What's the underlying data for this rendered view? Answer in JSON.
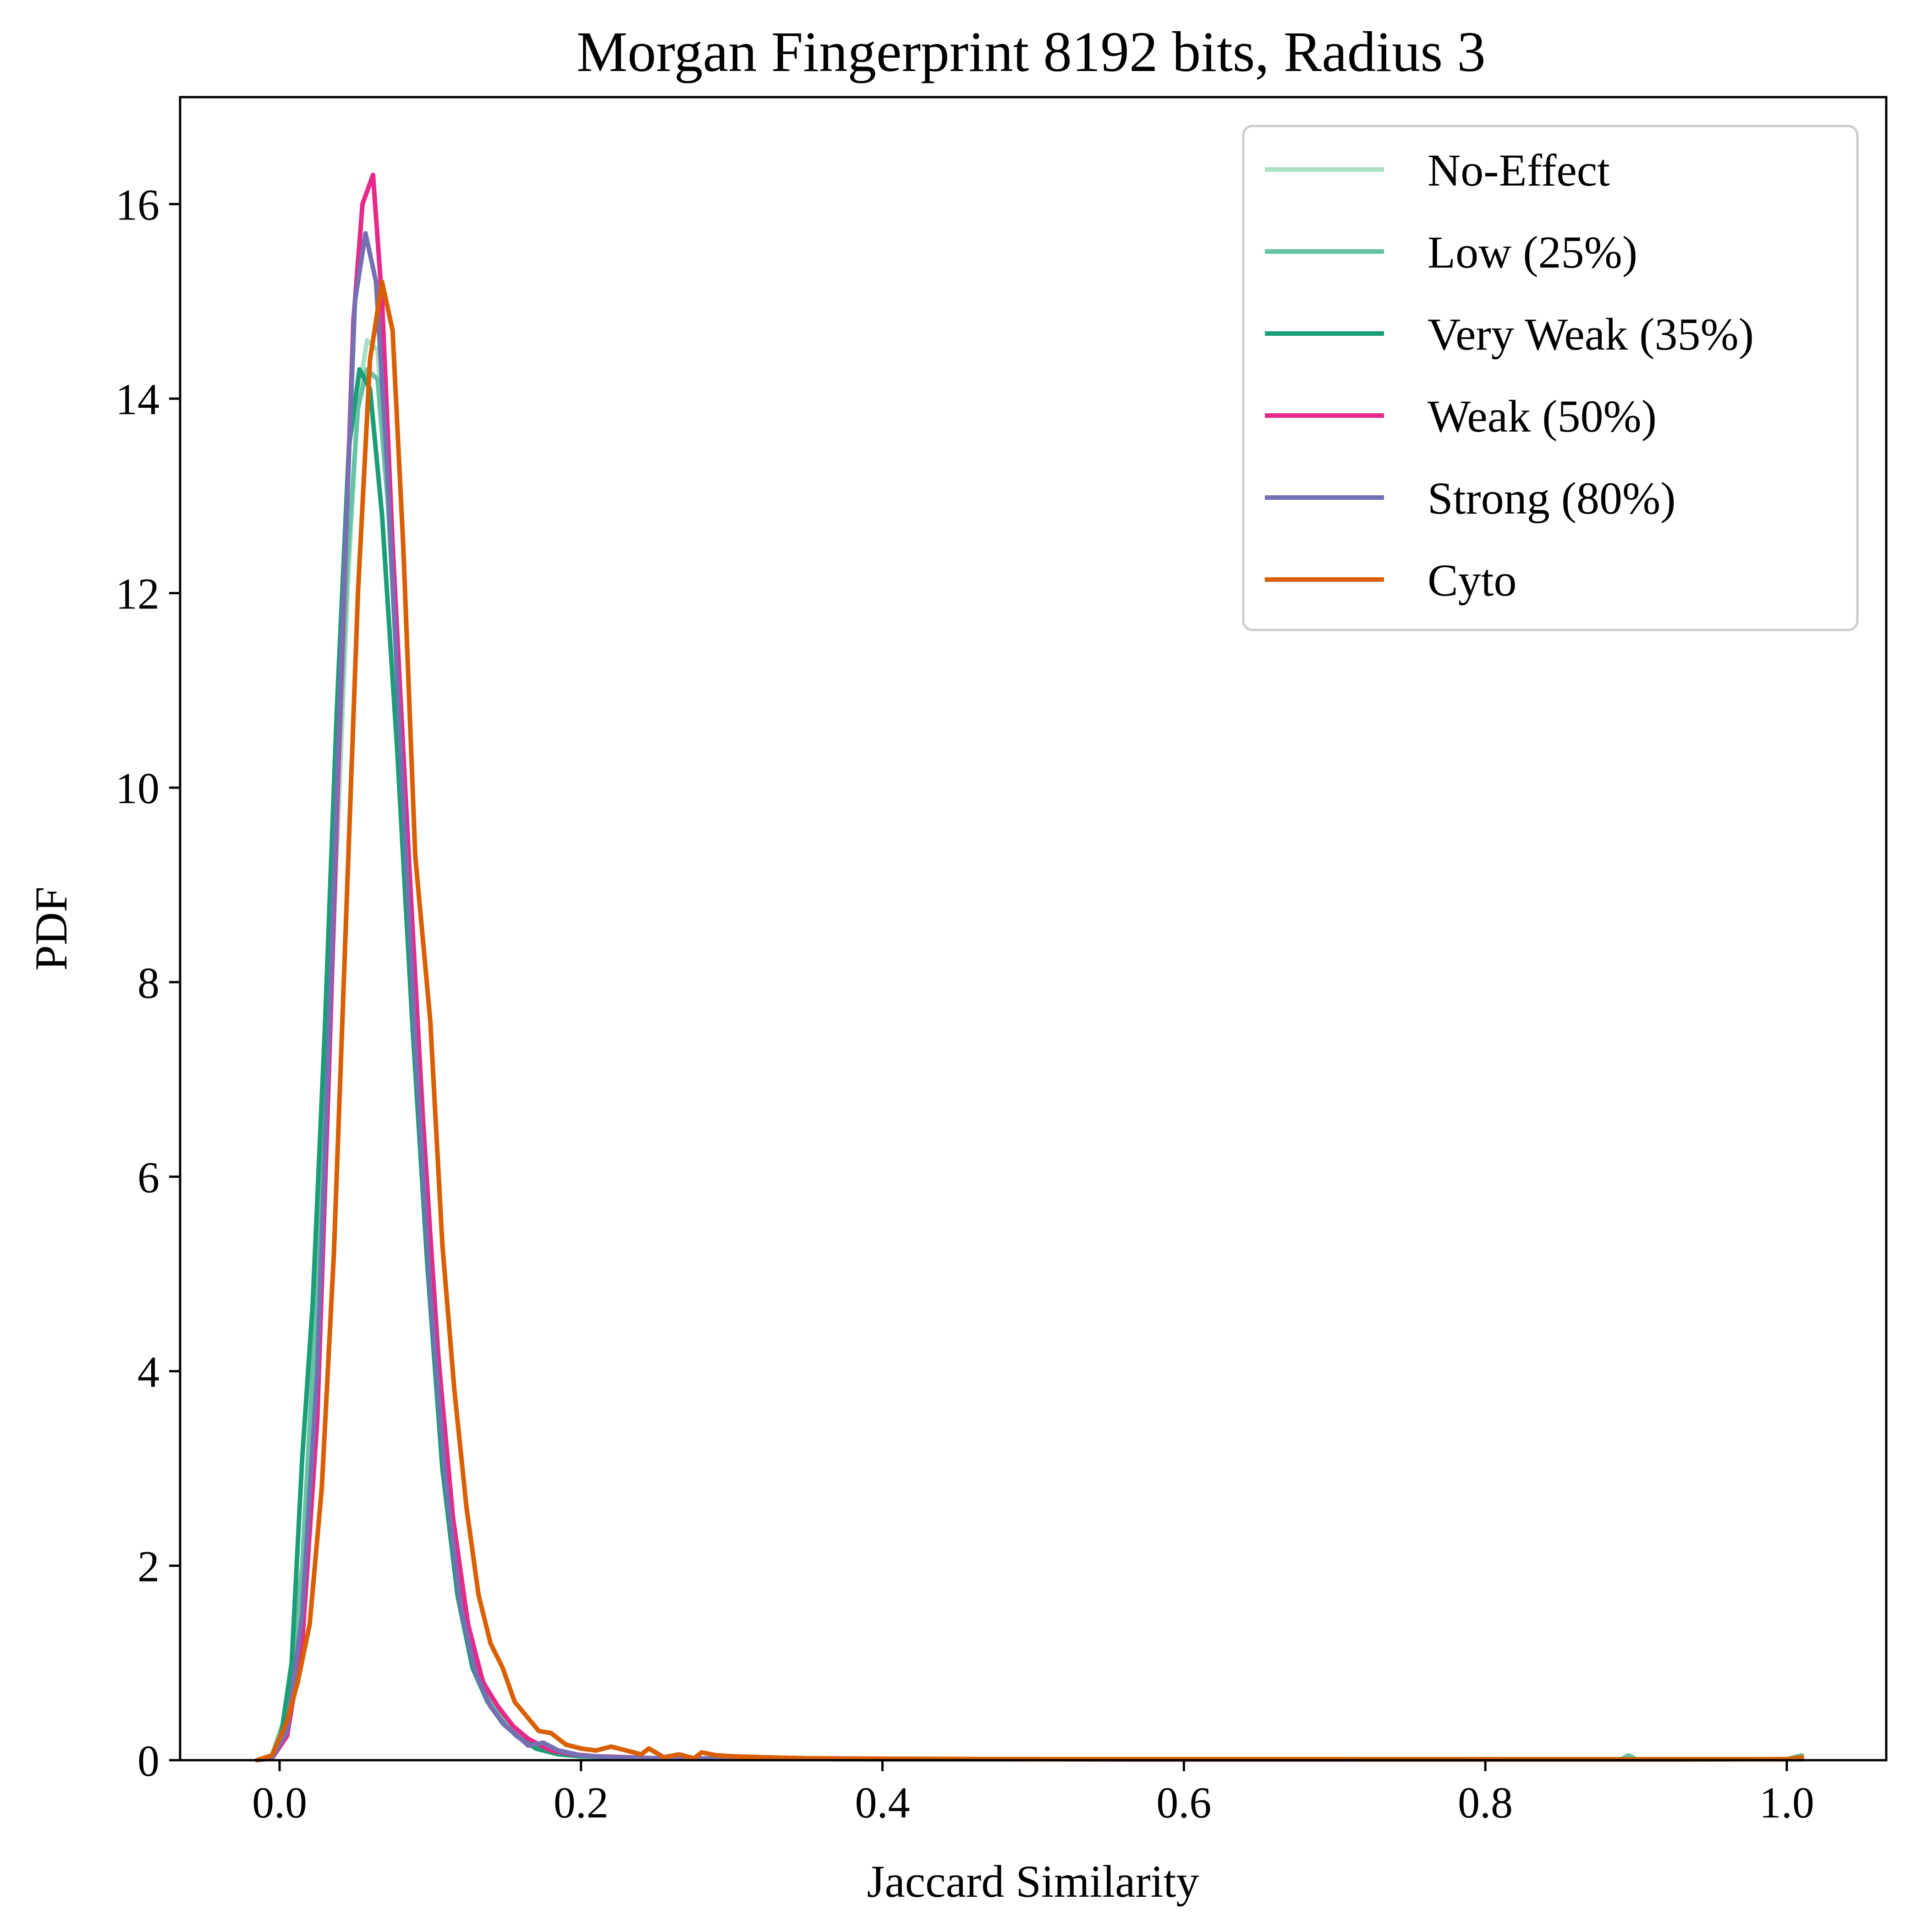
{
  "chart_data": {
    "type": "line",
    "title": "Morgan Fingerprint 8192 bits, Radius 3",
    "xlabel": "Jaccard Similarity",
    "ylabel": "PDF",
    "xlim": [
      -0.066,
      1.066
    ],
    "ylim": [
      0,
      17.1
    ],
    "xticks": [
      0.0,
      0.2,
      0.4,
      0.6,
      0.8,
      1.0
    ],
    "xtick_labels": [
      "0.0",
      "0.2",
      "0.4",
      "0.6",
      "0.8",
      "1.0"
    ],
    "yticks": [
      0,
      2,
      4,
      6,
      8,
      10,
      12,
      14,
      16
    ],
    "ytick_labels": [
      "0",
      "2",
      "4",
      "6",
      "8",
      "10",
      "12",
      "14",
      "16"
    ],
    "grid": false,
    "legend_position": "top-right",
    "series": [
      {
        "name": "No-Effect",
        "color": "#a9dfc6",
        "points": [
          [
            -0.015,
            0.0
          ],
          [
            -0.005,
            0.05
          ],
          [
            0.005,
            0.4
          ],
          [
            0.015,
            1.6
          ],
          [
            0.025,
            4.2
          ],
          [
            0.035,
            8.2
          ],
          [
            0.045,
            12.0
          ],
          [
            0.052,
            14.0
          ],
          [
            0.058,
            14.6
          ],
          [
            0.065,
            14.5
          ],
          [
            0.072,
            13.0
          ],
          [
            0.08,
            10.8
          ],
          [
            0.09,
            8.0
          ],
          [
            0.1,
            5.4
          ],
          [
            0.11,
            3.2
          ],
          [
            0.12,
            1.8
          ],
          [
            0.13,
            1.0
          ],
          [
            0.14,
            0.65
          ],
          [
            0.15,
            0.4
          ],
          [
            0.16,
            0.25
          ],
          [
            0.175,
            0.12
          ],
          [
            0.19,
            0.06
          ],
          [
            0.21,
            0.04
          ],
          [
            0.25,
            0.02
          ],
          [
            0.3,
            0.015
          ],
          [
            0.4,
            0.01
          ],
          [
            0.5,
            0.01
          ],
          [
            0.6,
            0.008
          ],
          [
            0.7,
            0.008
          ],
          [
            0.8,
            0.01
          ],
          [
            0.9,
            0.008
          ],
          [
            1.01,
            0.01
          ]
        ]
      },
      {
        "name": "Low (25%)",
        "color": "#66c2a5",
        "points": [
          [
            -0.015,
            0.0
          ],
          [
            -0.005,
            0.05
          ],
          [
            0.005,
            0.5
          ],
          [
            0.015,
            2.0
          ],
          [
            0.025,
            4.9
          ],
          [
            0.035,
            8.8
          ],
          [
            0.045,
            12.3
          ],
          [
            0.052,
            13.9
          ],
          [
            0.058,
            14.3
          ],
          [
            0.065,
            14.2
          ],
          [
            0.072,
            12.9
          ],
          [
            0.08,
            10.6
          ],
          [
            0.09,
            7.8
          ],
          [
            0.1,
            5.2
          ],
          [
            0.11,
            3.1
          ],
          [
            0.12,
            1.7
          ],
          [
            0.13,
            0.95
          ],
          [
            0.14,
            0.6
          ],
          [
            0.15,
            0.38
          ],
          [
            0.16,
            0.24
          ],
          [
            0.175,
            0.12
          ],
          [
            0.19,
            0.06
          ],
          [
            0.21,
            0.04
          ],
          [
            0.25,
            0.02
          ],
          [
            0.3,
            0.015
          ],
          [
            0.4,
            0.01
          ],
          [
            0.5,
            0.01
          ],
          [
            0.6,
            0.008
          ],
          [
            0.7,
            0.01
          ],
          [
            0.8,
            0.01
          ],
          [
            0.89,
            0.01
          ],
          [
            0.895,
            0.05
          ],
          [
            0.9,
            0.01
          ],
          [
            1.0,
            0.01
          ],
          [
            1.01,
            0.05
          ]
        ]
      },
      {
        "name": "Very Weak (35%)",
        "color": "#1b9e77",
        "points": [
          [
            -0.015,
            0.0
          ],
          [
            -0.005,
            0.05
          ],
          [
            0.0,
            0.15
          ],
          [
            0.008,
            1.0
          ],
          [
            0.015,
            3.1
          ],
          [
            0.022,
            4.7
          ],
          [
            0.03,
            7.5
          ],
          [
            0.038,
            10.8
          ],
          [
            0.046,
            13.5
          ],
          [
            0.053,
            14.3
          ],
          [
            0.06,
            14.1
          ],
          [
            0.068,
            12.8
          ],
          [
            0.078,
            10.4
          ],
          [
            0.088,
            7.6
          ],
          [
            0.098,
            5.1
          ],
          [
            0.108,
            3.0
          ],
          [
            0.118,
            1.7
          ],
          [
            0.128,
            0.95
          ],
          [
            0.138,
            0.6
          ],
          [
            0.148,
            0.38
          ],
          [
            0.158,
            0.24
          ],
          [
            0.17,
            0.12
          ],
          [
            0.185,
            0.06
          ],
          [
            0.2,
            0.04
          ],
          [
            0.25,
            0.02
          ],
          [
            0.3,
            0.015
          ],
          [
            0.4,
            0.01
          ],
          [
            0.5,
            0.01
          ],
          [
            0.6,
            0.008
          ],
          [
            0.7,
            0.008
          ],
          [
            0.8,
            0.008
          ],
          [
            0.9,
            0.008
          ],
          [
            1.01,
            0.01
          ]
        ]
      },
      {
        "name": "Weak (50%)",
        "color": "#e7298a",
        "points": [
          [
            -0.015,
            0.0
          ],
          [
            -0.005,
            0.02
          ],
          [
            0.005,
            0.25
          ],
          [
            0.015,
            1.2
          ],
          [
            0.025,
            3.5
          ],
          [
            0.033,
            7.2
          ],
          [
            0.041,
            11.2
          ],
          [
            0.049,
            14.8
          ],
          [
            0.055,
            16.0
          ],
          [
            0.062,
            16.3
          ],
          [
            0.068,
            15.0
          ],
          [
            0.075,
            12.5
          ],
          [
            0.085,
            9.5
          ],
          [
            0.095,
            6.6
          ],
          [
            0.105,
            4.2
          ],
          [
            0.115,
            2.5
          ],
          [
            0.125,
            1.4
          ],
          [
            0.135,
            0.8
          ],
          [
            0.145,
            0.55
          ],
          [
            0.155,
            0.35
          ],
          [
            0.165,
            0.22
          ],
          [
            0.18,
            0.1
          ],
          [
            0.195,
            0.06
          ],
          [
            0.21,
            0.04
          ],
          [
            0.25,
            0.02
          ],
          [
            0.3,
            0.015
          ],
          [
            0.4,
            0.01
          ],
          [
            0.5,
            0.01
          ],
          [
            0.6,
            0.008
          ],
          [
            0.7,
            0.008
          ],
          [
            0.8,
            0.008
          ],
          [
            0.9,
            0.008
          ],
          [
            1.01,
            0.01
          ]
        ]
      },
      {
        "name": "Strong (80%)",
        "color": "#7570b3",
        "points": [
          [
            -0.015,
            0.0
          ],
          [
            -0.005,
            0.02
          ],
          [
            0.005,
            0.3
          ],
          [
            0.015,
            1.5
          ],
          [
            0.025,
            4.0
          ],
          [
            0.033,
            7.6
          ],
          [
            0.041,
            11.4
          ],
          [
            0.05,
            15.0
          ],
          [
            0.057,
            15.7
          ],
          [
            0.064,
            15.2
          ],
          [
            0.071,
            13.4
          ],
          [
            0.08,
            10.5
          ],
          [
            0.09,
            7.4
          ],
          [
            0.1,
            4.8
          ],
          [
            0.11,
            2.9
          ],
          [
            0.12,
            1.6
          ],
          [
            0.13,
            0.9
          ],
          [
            0.14,
            0.55
          ],
          [
            0.15,
            0.35
          ],
          [
            0.16,
            0.22
          ],
          [
            0.165,
            0.15
          ],
          [
            0.175,
            0.18
          ],
          [
            0.185,
            0.1
          ],
          [
            0.2,
            0.05
          ],
          [
            0.22,
            0.03
          ],
          [
            0.25,
            0.02
          ],
          [
            0.3,
            0.015
          ],
          [
            0.4,
            0.01
          ],
          [
            0.5,
            0.01
          ],
          [
            0.6,
            0.008
          ],
          [
            0.7,
            0.008
          ],
          [
            0.8,
            0.008
          ],
          [
            0.9,
            0.008
          ],
          [
            1.01,
            0.01
          ]
        ]
      },
      {
        "name": "Cyto",
        "color": "#d95f02",
        "points": [
          [
            -0.015,
            0.0
          ],
          [
            -0.005,
            0.05
          ],
          [
            0.005,
            0.4
          ],
          [
            0.012,
            0.8
          ],
          [
            0.02,
            1.4
          ],
          [
            0.028,
            2.8
          ],
          [
            0.036,
            5.2
          ],
          [
            0.044,
            8.6
          ],
          [
            0.052,
            12.0
          ],
          [
            0.06,
            14.4
          ],
          [
            0.068,
            15.2
          ],
          [
            0.075,
            14.7
          ],
          [
            0.082,
            12.5
          ],
          [
            0.09,
            9.3
          ],
          [
            0.1,
            7.6
          ],
          [
            0.108,
            5.3
          ],
          [
            0.116,
            3.8
          ],
          [
            0.124,
            2.6
          ],
          [
            0.132,
            1.7
          ],
          [
            0.14,
            1.2
          ],
          [
            0.148,
            0.95
          ],
          [
            0.156,
            0.6
          ],
          [
            0.164,
            0.45
          ],
          [
            0.172,
            0.3
          ],
          [
            0.18,
            0.28
          ],
          [
            0.19,
            0.16
          ],
          [
            0.2,
            0.12
          ],
          [
            0.21,
            0.1
          ],
          [
            0.22,
            0.14
          ],
          [
            0.23,
            0.1
          ],
          [
            0.24,
            0.06
          ],
          [
            0.245,
            0.12
          ],
          [
            0.255,
            0.03
          ],
          [
            0.265,
            0.06
          ],
          [
            0.275,
            0.02
          ],
          [
            0.28,
            0.08
          ],
          [
            0.29,
            0.05
          ],
          [
            0.3,
            0.04
          ],
          [
            0.32,
            0.03
          ],
          [
            0.35,
            0.02
          ],
          [
            0.4,
            0.015
          ],
          [
            0.5,
            0.01
          ],
          [
            0.6,
            0.01
          ],
          [
            0.7,
            0.01
          ],
          [
            0.8,
            0.008
          ],
          [
            0.9,
            0.008
          ],
          [
            1.0,
            0.01
          ],
          [
            1.01,
            0.03
          ]
        ]
      }
    ]
  }
}
